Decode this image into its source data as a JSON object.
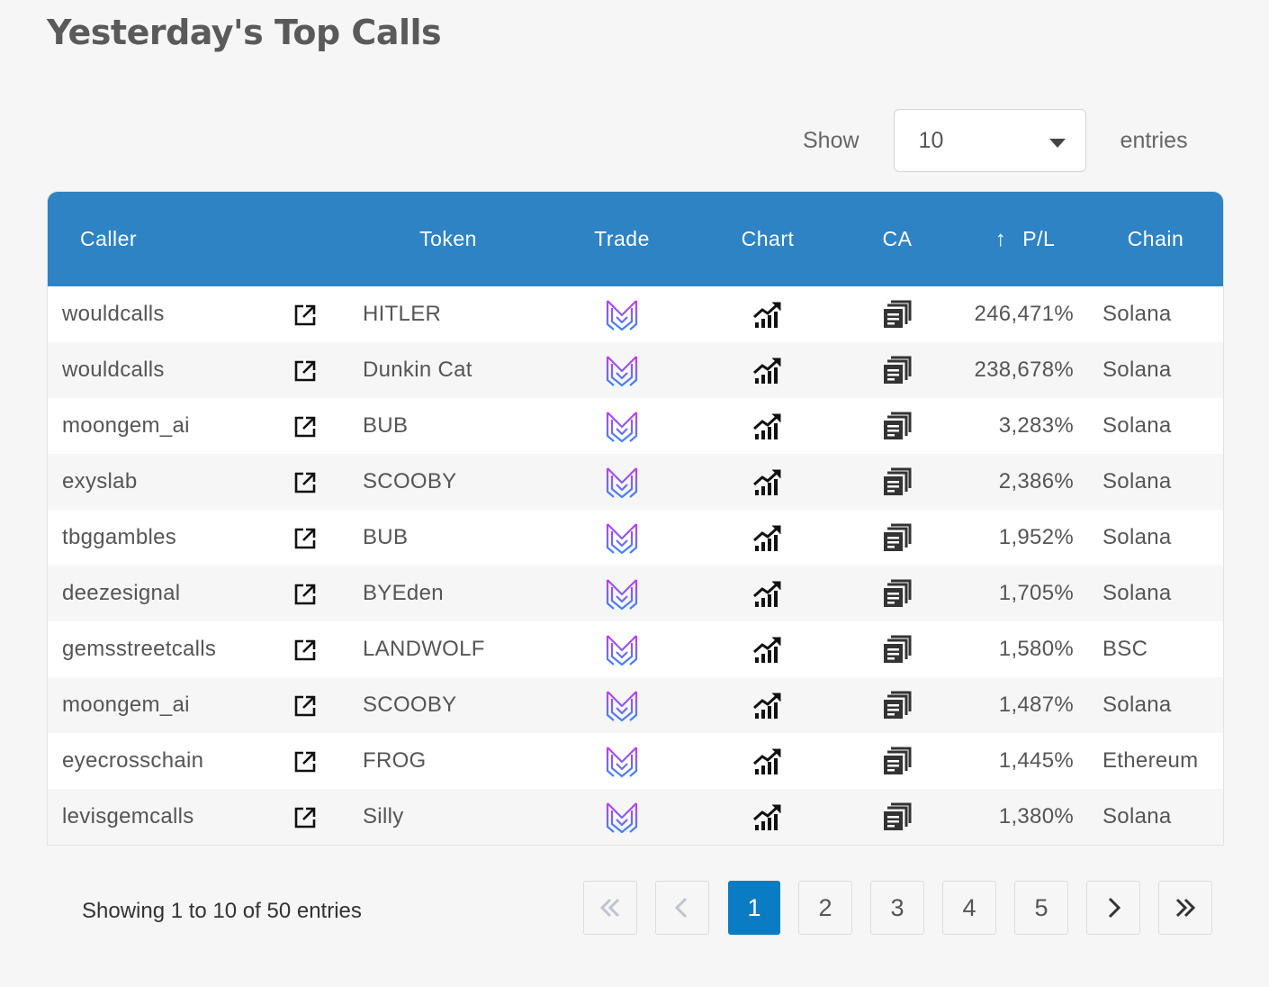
{
  "page": {
    "title": "Yesterday's Top Calls"
  },
  "length_control": {
    "show_label": "Show",
    "selected": "10",
    "entries_label": "entries"
  },
  "table": {
    "headers": {
      "caller": "Caller",
      "token": "Token",
      "trade": "Trade",
      "chart": "Chart",
      "ca": "CA",
      "pl": "P/L",
      "chain": "Chain"
    },
    "sort_indicator": "↑",
    "rows": [
      {
        "caller": "wouldcalls",
        "token": "HITLER",
        "pl": "246,471%",
        "chain": "Solana"
      },
      {
        "caller": "wouldcalls",
        "token": "Dunkin Cat",
        "pl": "238,678%",
        "chain": "Solana"
      },
      {
        "caller": "moongem_ai",
        "token": "BUB",
        "pl": "3,283%",
        "chain": "Solana"
      },
      {
        "caller": "exyslab",
        "token": "SCOOBY",
        "pl": "2,386%",
        "chain": "Solana"
      },
      {
        "caller": "tbggambles",
        "token": "BUB",
        "pl": "1,952%",
        "chain": "Solana"
      },
      {
        "caller": "deezesignal",
        "token": "BYEden",
        "pl": "1,705%",
        "chain": "Solana"
      },
      {
        "caller": "gemsstreetcalls",
        "token": "LANDWOLF",
        "pl": "1,580%",
        "chain": "BSC"
      },
      {
        "caller": "moongem_ai",
        "token": "SCOOBY",
        "pl": "1,487%",
        "chain": "Solana"
      },
      {
        "caller": "eyecrosschain",
        "token": "FROG",
        "pl": "1,445%",
        "chain": "Ethereum"
      },
      {
        "caller": "levisgemcalls",
        "token": "Silly",
        "pl": "1,380%",
        "chain": "Solana"
      }
    ]
  },
  "icons": {
    "caller_link": "external-link-icon",
    "trade": "trade-logo-icon",
    "chart": "chart-growth-icon",
    "ca": "copy-icon"
  },
  "colors": {
    "header": "#2e83c4",
    "active_page": "#0a7cc3",
    "trade_gradient_start": "#c03ef0",
    "trade_gradient_end": "#3d86f7"
  },
  "pagination": {
    "info": "Showing 1 to 10 of 50 entries",
    "first": "«",
    "prev": "‹",
    "pages": [
      "1",
      "2",
      "3",
      "4",
      "5"
    ],
    "active_page": "1",
    "next": "›",
    "last": "»"
  }
}
